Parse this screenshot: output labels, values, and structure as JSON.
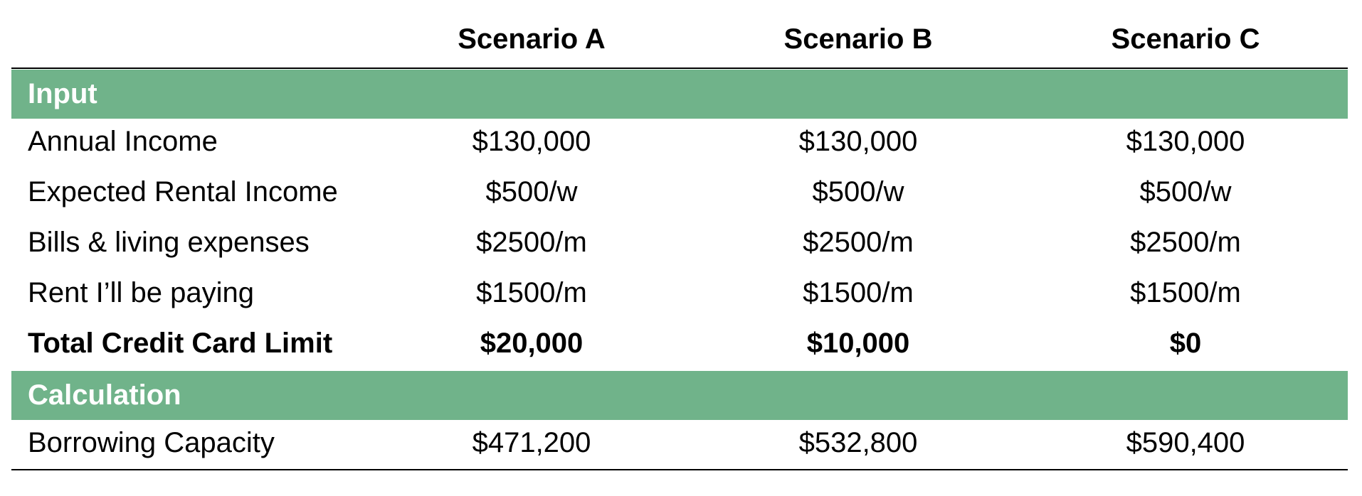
{
  "table": {
    "columns": [
      "Scenario A",
      "Scenario B",
      "Scenario C"
    ],
    "sections": [
      {
        "title": "Input",
        "rows": [
          {
            "label": "Annual Income",
            "values": [
              "$130,000",
              "$130,000",
              "$130,000"
            ]
          },
          {
            "label": "Expected Rental Income",
            "values": [
              "$500/w",
              "$500/w",
              "$500/w"
            ]
          },
          {
            "label": "Bills & living expenses",
            "values": [
              "$2500/m",
              "$2500/m",
              "$2500/m"
            ]
          },
          {
            "label": "Rent I’ll be paying",
            "values": [
              "$1500/m",
              "$1500/m",
              "$1500/m"
            ]
          },
          {
            "label": "Total Credit Card Limit",
            "values": [
              "$20,000",
              "$10,000",
              "$0"
            ],
            "bold": true
          }
        ]
      },
      {
        "title": "Calculation",
        "rows": [
          {
            "label": "Borrowing Capacity",
            "values": [
              "$471,200",
              "$532,800",
              "$590,400"
            ]
          }
        ]
      }
    ]
  }
}
